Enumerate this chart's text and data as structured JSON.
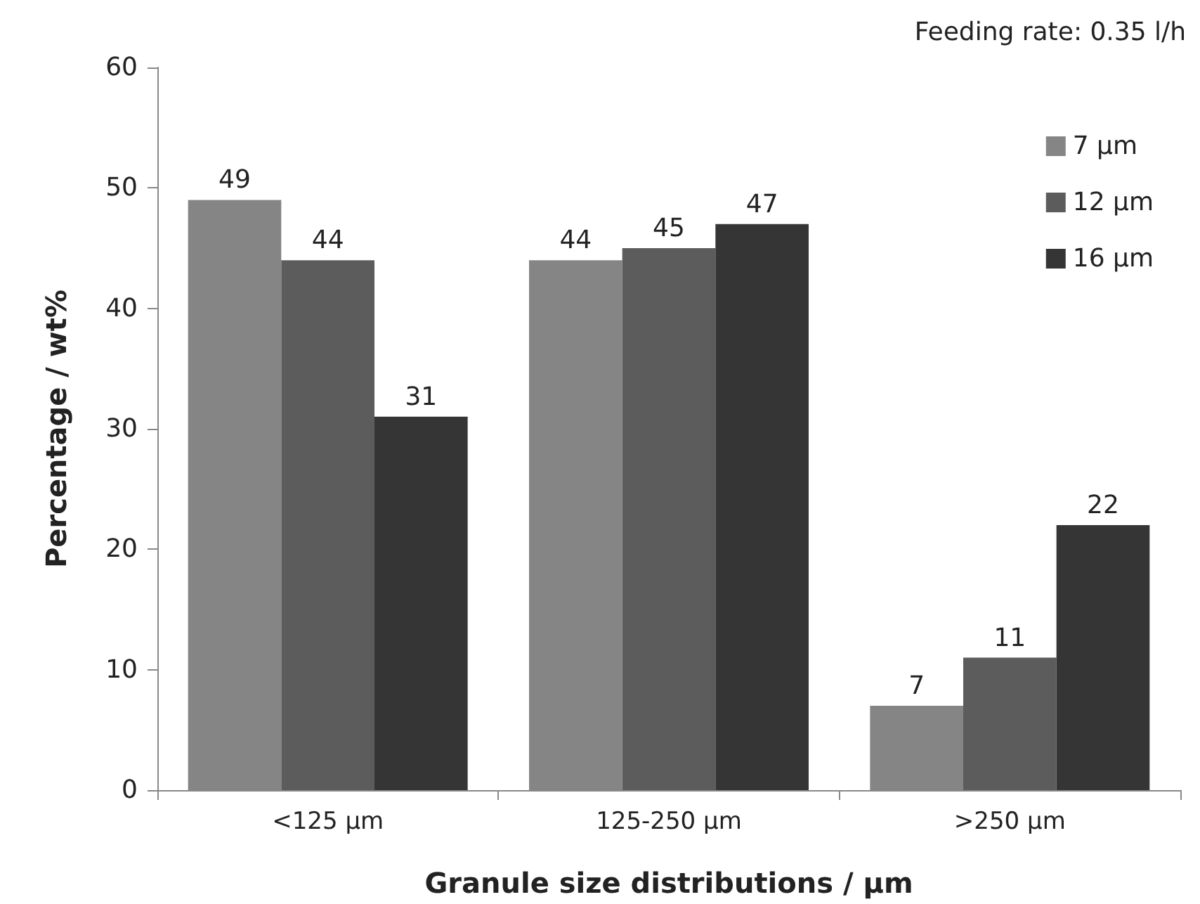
{
  "chart_data": {
    "type": "bar",
    "xlabel": "Granule size distributions / µm",
    "ylabel": "Percentage / wt%",
    "annotations": [
      "Feeding rate: 0.35 l/h"
    ],
    "categories": [
      "<125 µm",
      "125-250 µm",
      ">250 µm"
    ],
    "series": [
      {
        "name": "7 µm",
        "color": "#858585",
        "values": [
          49,
          44,
          7
        ]
      },
      {
        "name": "12 µm",
        "color": "#5c5c5c",
        "values": [
          44,
          45,
          11
        ]
      },
      {
        "name": "16 µm",
        "color": "#353535",
        "values": [
          31,
          47,
          22
        ]
      }
    ],
    "ylim": [
      0,
      60
    ],
    "yticks": [
      0,
      10,
      20,
      30,
      40,
      50,
      60
    ],
    "grid": false,
    "legend": "top right",
    "data_labels": true
  }
}
